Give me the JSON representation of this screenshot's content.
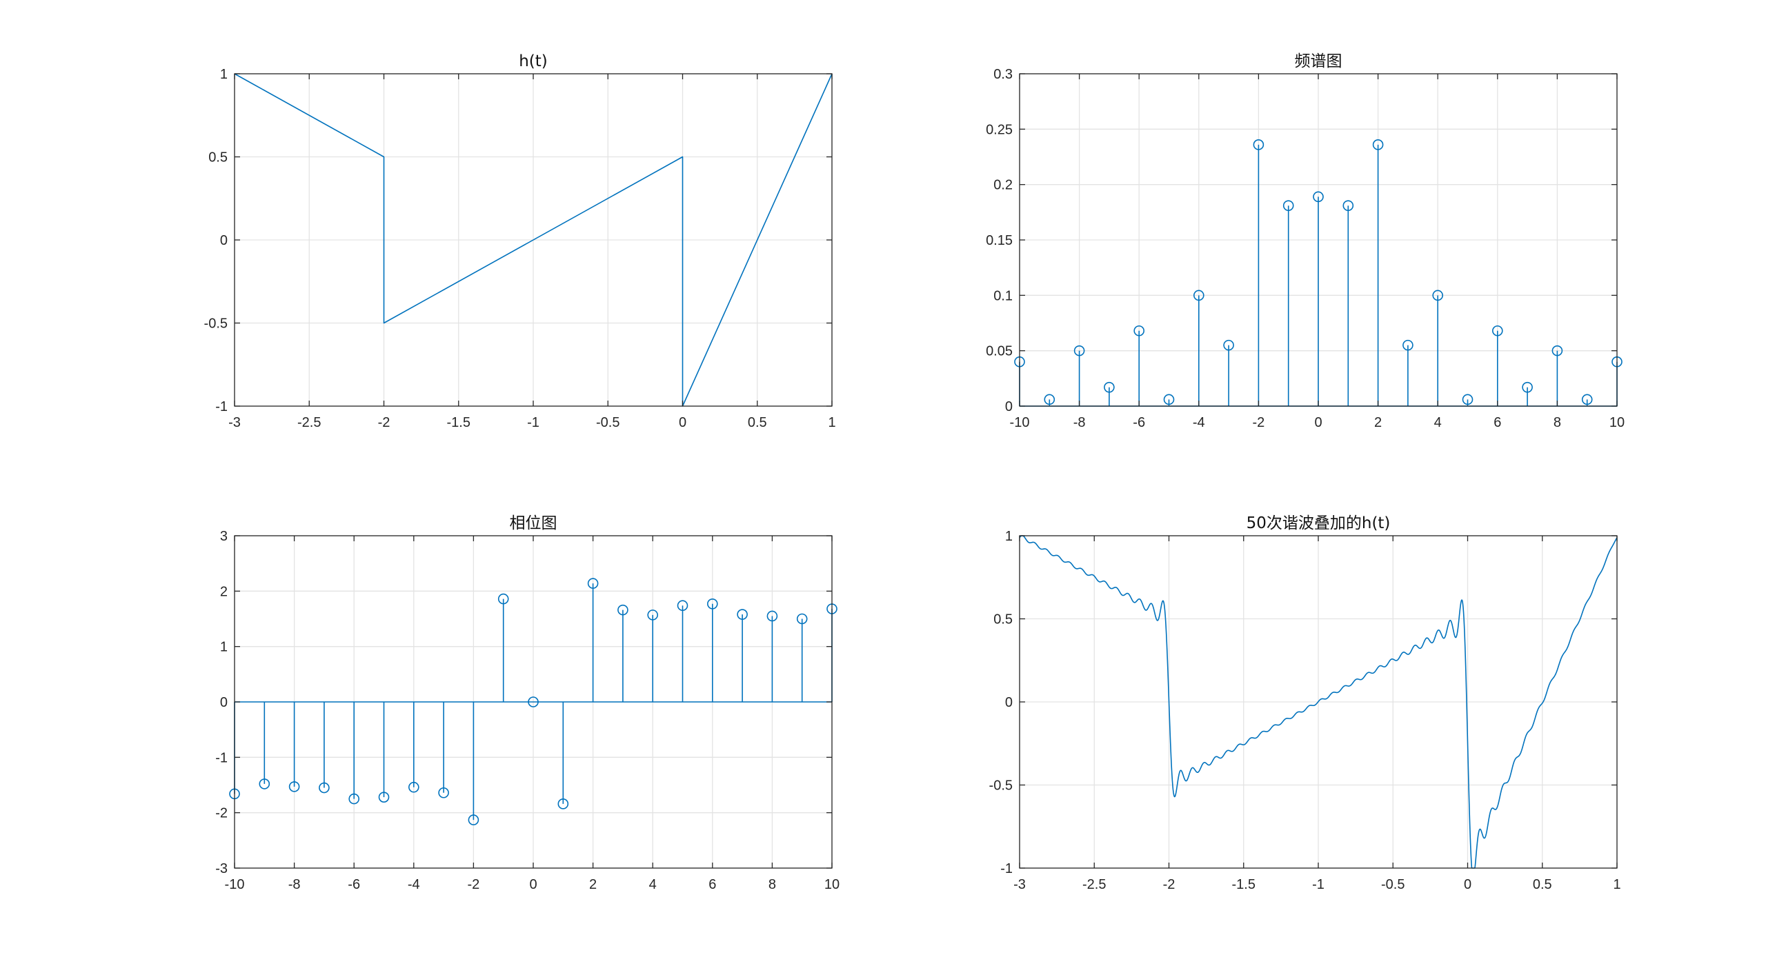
{
  "window": {
    "background": "#ffffff"
  },
  "style": {
    "series_color": "#0072bd",
    "frame_color": "#262626",
    "grid_color": "#e3e3e3"
  },
  "chart_data": [
    {
      "id": "ht",
      "type": "line",
      "title": "h(t)",
      "xlabel": "",
      "ylabel": "",
      "grid": true,
      "xlim": [
        -3,
        1
      ],
      "ylim": [
        -1,
        1
      ],
      "xticks": [
        -3,
        -2.5,
        -2,
        -1.5,
        -1,
        -0.5,
        0,
        0.5,
        1
      ],
      "xtick_labels": [
        "-3",
        "-2.5",
        "-2",
        "-1.5",
        "-1",
        "-0.5",
        "0",
        "0.5",
        "1"
      ],
      "yticks": [
        -1,
        -0.5,
        0,
        0.5,
        1
      ],
      "ytick_labels": [
        "-1",
        "-0.5",
        "0",
        "0.5",
        "1"
      ],
      "x": [
        -3,
        -2,
        -2,
        0,
        0,
        1
      ],
      "y": [
        1,
        0.5,
        -0.5,
        0.5,
        -1,
        1
      ]
    },
    {
      "id": "spectrum",
      "type": "stem",
      "title": "频谱图",
      "xlabel": "",
      "ylabel": "",
      "grid": true,
      "xlim": [
        -10,
        10
      ],
      "ylim": [
        0,
        0.3
      ],
      "xticks": [
        -10,
        -8,
        -6,
        -4,
        -2,
        0,
        2,
        4,
        6,
        8,
        10
      ],
      "xtick_labels": [
        "-10",
        "-8",
        "-6",
        "-4",
        "-2",
        "0",
        "2",
        "4",
        "6",
        "8",
        "10"
      ],
      "yticks": [
        0,
        0.05,
        0.1,
        0.15,
        0.2,
        0.25,
        0.3
      ],
      "ytick_labels": [
        "0",
        "0.05",
        "0.1",
        "0.15",
        "0.2",
        "0.25",
        "0.3"
      ],
      "x": [
        -10,
        -9,
        -8,
        -7,
        -6,
        -5,
        -4,
        -3,
        -2,
        -1,
        0,
        1,
        2,
        3,
        4,
        5,
        6,
        7,
        8,
        9,
        10
      ],
      "y": [
        0.04,
        0.006,
        0.05,
        0.017,
        0.068,
        0.006,
        0.1,
        0.055,
        0.236,
        0.181,
        0.189,
        0.181,
        0.236,
        0.055,
        0.1,
        0.006,
        0.068,
        0.017,
        0.05,
        0.006,
        0.04
      ]
    },
    {
      "id": "phase",
      "type": "stem",
      "title": "相位图",
      "xlabel": "",
      "ylabel": "",
      "grid": true,
      "xlim": [
        -10,
        10
      ],
      "ylim": [
        -3,
        3
      ],
      "xticks": [
        -10,
        -8,
        -6,
        -4,
        -2,
        0,
        2,
        4,
        6,
        8,
        10
      ],
      "xtick_labels": [
        "-10",
        "-8",
        "-6",
        "-4",
        "-2",
        "0",
        "2",
        "4",
        "6",
        "8",
        "10"
      ],
      "yticks": [
        -3,
        -2,
        -1,
        0,
        1,
        2,
        3
      ],
      "ytick_labels": [
        "-3",
        "-2",
        "-1",
        "0",
        "1",
        "2",
        "3"
      ],
      "x": [
        -10,
        -9,
        -8,
        -7,
        -6,
        -5,
        -4,
        -3,
        -2,
        -1,
        0,
        1,
        2,
        3,
        4,
        5,
        6,
        7,
        8,
        9,
        10
      ],
      "y": [
        -1.66,
        -1.48,
        -1.53,
        -1.55,
        -1.75,
        -1.72,
        -1.54,
        -1.64,
        -2.13,
        1.86,
        0,
        -1.84,
        2.14,
        1.66,
        1.57,
        1.74,
        1.77,
        1.58,
        1.55,
        1.5,
        1.68
      ]
    },
    {
      "id": "fourier50",
      "type": "line",
      "title": "50次谐波叠加的h(t)",
      "xlabel": "",
      "ylabel": "",
      "grid": true,
      "xlim": [
        -3,
        1
      ],
      "ylim": [
        -1,
        1
      ],
      "xticks": [
        -3,
        -2.5,
        -2,
        -1.5,
        -1,
        -0.5,
        0,
        0.5,
        1
      ],
      "xtick_labels": [
        "-3",
        "-2.5",
        "-2",
        "-1.5",
        "-1",
        "-0.5",
        "0",
        "0.5",
        "1"
      ],
      "yticks": [
        -1,
        -0.5,
        0,
        0.5,
        1
      ],
      "ytick_labels": [
        "-1",
        "-0.5",
        "0",
        "0.5",
        "1"
      ],
      "harmonics": 50
    }
  ]
}
